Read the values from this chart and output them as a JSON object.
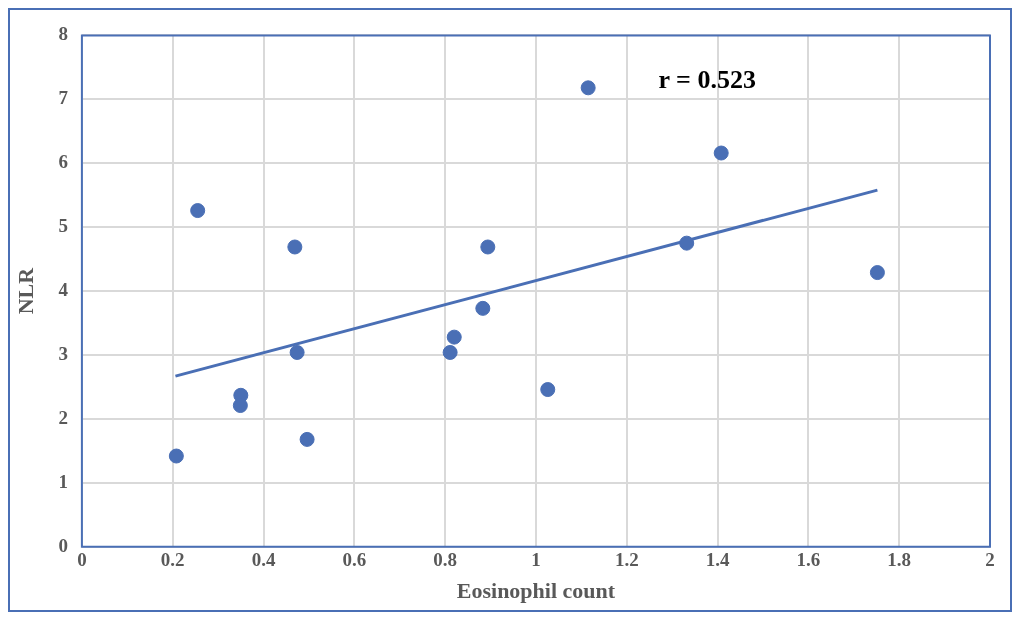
{
  "chart_data": {
    "type": "scatter",
    "xlabel": "Eosinophil count",
    "ylabel": "NLR",
    "annotations": [
      "r = 0.523"
    ],
    "xlim": [
      0,
      2
    ],
    "xticks": [
      0,
      0.2,
      0.4,
      0.6,
      0.8,
      1,
      1.2,
      1.4,
      1.6,
      1.8,
      2
    ],
    "ylim": [
      0,
      8
    ],
    "yticks": [
      0,
      1,
      2,
      3,
      4,
      5,
      6,
      7,
      8
    ],
    "grid": true,
    "legend": false,
    "marker": "circle",
    "series": [
      {
        "color": "#4a6fb5",
        "x": [
          0.208,
          0.255,
          0.35,
          0.349,
          0.469,
          0.474,
          0.496,
          0.811,
          0.82,
          0.883,
          0.894,
          1.026,
          1.115,
          1.332,
          1.408,
          1.752
        ],
        "values": [
          1.42,
          5.26,
          2.37,
          2.21,
          4.69,
          3.04,
          1.68,
          3.04,
          3.28,
          3.73,
          4.69,
          2.46,
          7.18,
          4.75,
          6.16,
          4.29
        ]
      },
      {
        "type": "line",
        "color": "#4a6fb5",
        "marker": "none",
        "x": [
          0.206,
          1.752
        ],
        "values": [
          2.67,
          5.58
        ]
      }
    ]
  }
}
